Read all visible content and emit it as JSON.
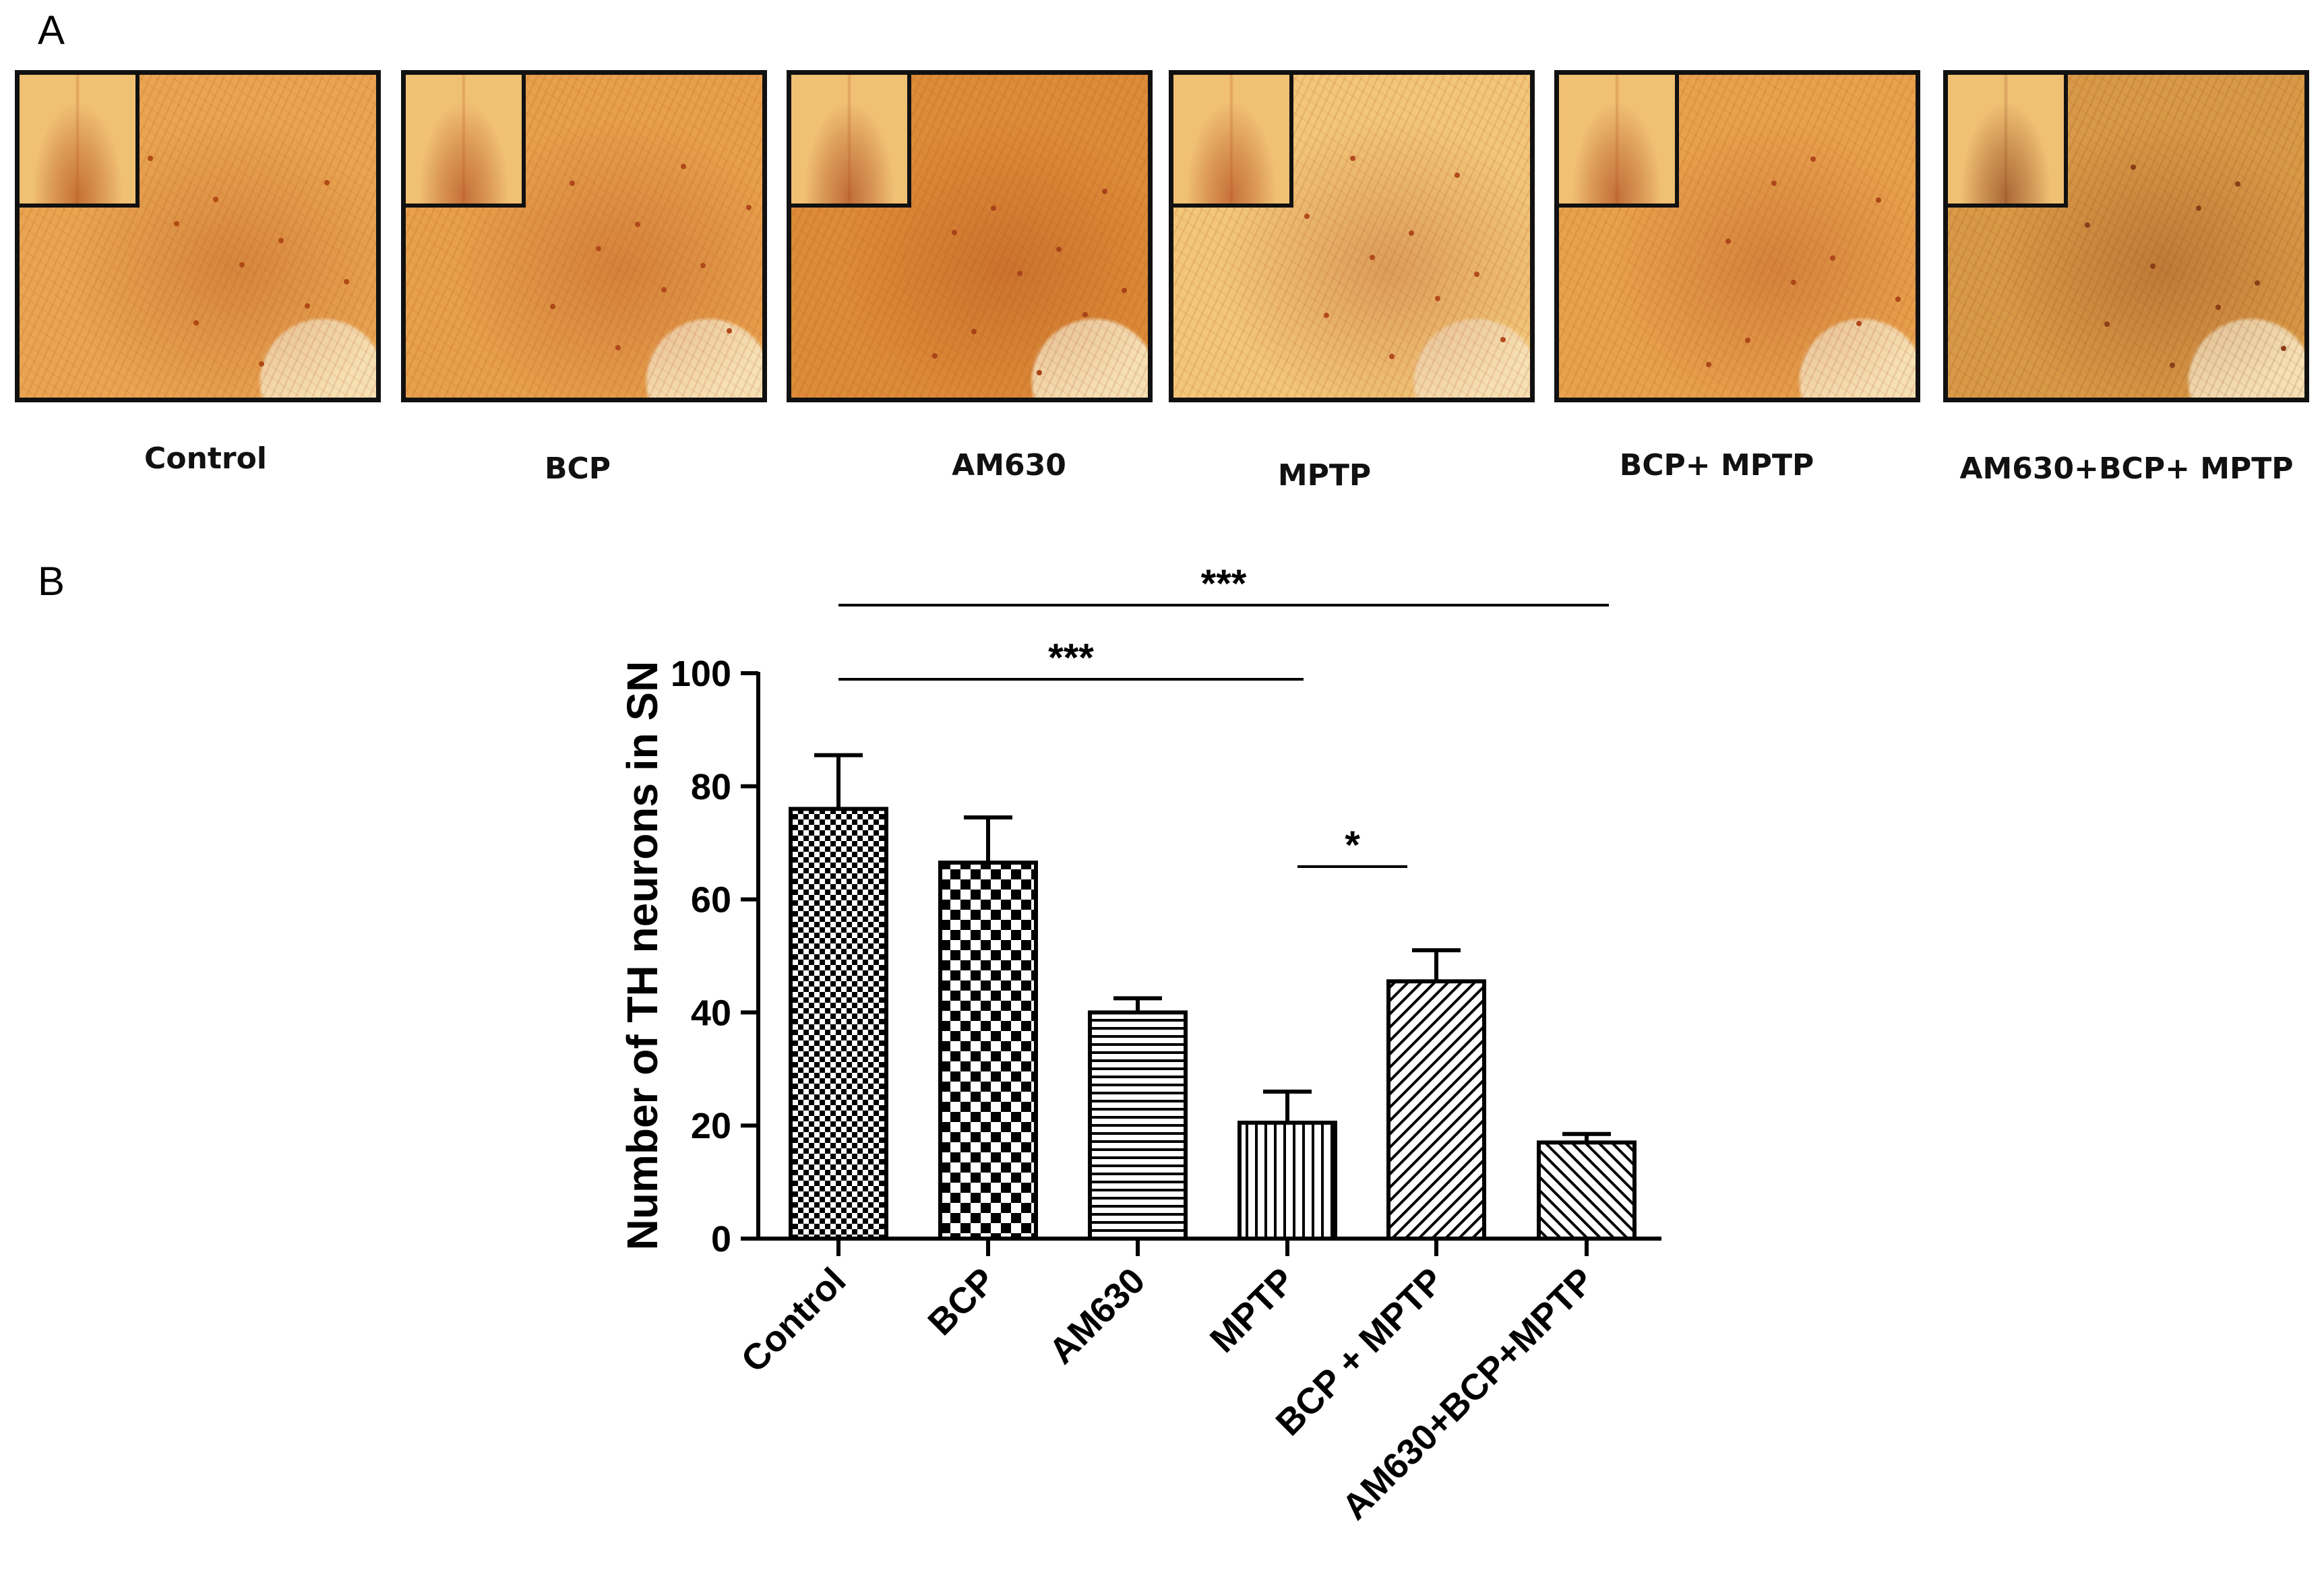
{
  "panel_labels": {
    "a": "A",
    "b": "B"
  },
  "panel_a": {
    "images": [
      {
        "label": "Control",
        "tint": "#e9a552",
        "dark": "#b04a15"
      },
      {
        "label": "BCP",
        "tint": "#e7a04c",
        "dark": "#b0481a"
      },
      {
        "label": "AM630",
        "tint": "#dd8c38",
        "dark": "#a9431a"
      },
      {
        "label": "MPTP",
        "tint": "#f2c779",
        "dark": "#b24a1c"
      },
      {
        "label": "BCP+ MPTP",
        "tint": "#e8a24d",
        "dark": "#ad471a"
      },
      {
        "label": "AM630+BCP+ MPTP",
        "tint": "#d99a47",
        "dark": "#8a3d18"
      }
    ]
  },
  "chart_data": {
    "type": "bar",
    "categories": [
      "Control",
      "BCP",
      "AM630",
      "MPTP",
      "BCP + MPTP",
      "AM630+BCP+MPTP"
    ],
    "values": [
      76,
      66.5,
      40,
      20.5,
      45.5,
      17
    ],
    "errors": [
      9.5,
      8,
      2.5,
      5.5,
      5.5,
      1.5
    ],
    "patterns": [
      "dense-checker",
      "checker",
      "horizontal",
      "vertical",
      "diagonal-up",
      "diagonal-down"
    ],
    "ylabel": "Number of TH neurons in SN",
    "ylim": [
      0,
      100
    ],
    "yticks": [
      0,
      20,
      40,
      60,
      80,
      100
    ],
    "significance": [
      {
        "from": 0,
        "to": 5,
        "label": "***"
      },
      {
        "from": 0,
        "to": 3,
        "label": "***"
      },
      {
        "from": 3,
        "to": 4,
        "label": "*"
      }
    ]
  }
}
